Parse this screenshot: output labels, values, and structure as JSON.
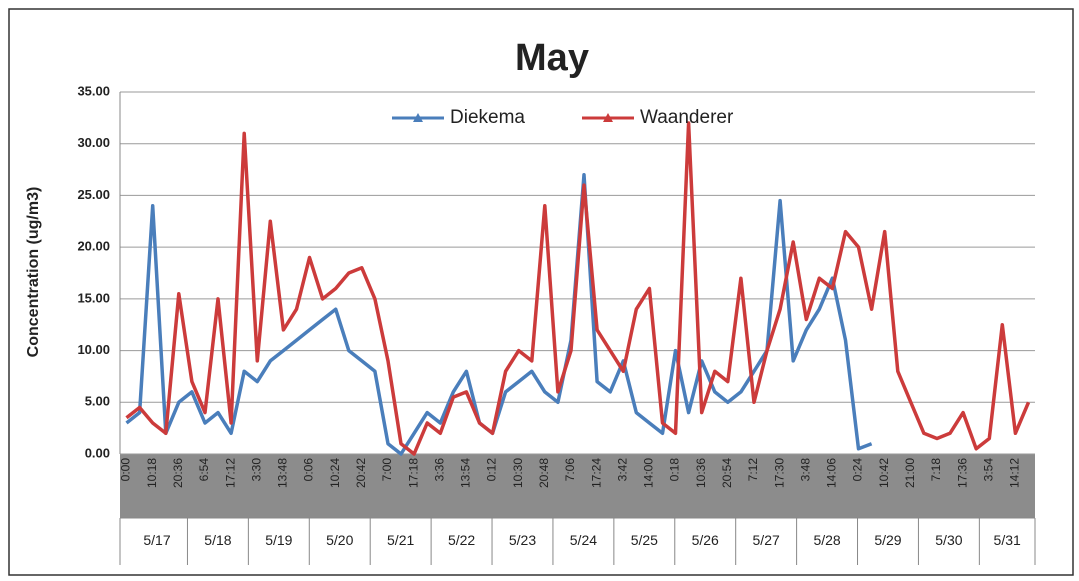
{
  "chart_data": {
    "type": "line",
    "title": "May",
    "y_label": "Concentration (ug/m3)",
    "categories": [
      "0:00",
      null,
      "10:18",
      null,
      "20:36",
      null,
      "6:54",
      null,
      "17:12",
      null,
      "3:30",
      null,
      "13:48",
      null,
      "0:06",
      null,
      "10:24",
      null,
      "20:42",
      null,
      "7:00",
      null,
      "17:18",
      null,
      "3:36",
      null,
      "13:54",
      null,
      "0:12",
      null,
      "10:30",
      null,
      "20:48",
      null,
      "7:06",
      null,
      "17:24",
      null,
      "3:42",
      null,
      "14:00",
      null,
      "0:18",
      null,
      "10:36",
      null,
      "20:54",
      null,
      "7:12",
      null,
      "17:30",
      null,
      "3:48",
      null,
      "14:06",
      null,
      "0:24",
      null,
      "10:42",
      null,
      "21:00",
      null,
      "7:18",
      null,
      "17:36",
      null,
      "3:54",
      null,
      "14:12",
      null
    ],
    "groups": [
      "5/17",
      "5/18",
      "5/19",
      "5/20",
      "5/21",
      "5/22",
      "5/23",
      "5/24",
      "5/25",
      "5/26",
      "5/27",
      "5/28",
      "5/29",
      "5/30",
      "5/31"
    ],
    "series": [
      {
        "name": "Diekema",
        "color": "#4a7ebb",
        "values": [
          3,
          4,
          24,
          2,
          5,
          6,
          3,
          4,
          2,
          8,
          7,
          9,
          10,
          11,
          12,
          13,
          14,
          10,
          9,
          8,
          1,
          0,
          2,
          4,
          3,
          6,
          8,
          3,
          2,
          6,
          7,
          8,
          6,
          5,
          11,
          27,
          7,
          6,
          9,
          4,
          3,
          2,
          10,
          4,
          9,
          6,
          5,
          6,
          8,
          10,
          24.5,
          9,
          12,
          14,
          17,
          11,
          0.5,
          1,
          null,
          null,
          null,
          null,
          null,
          null,
          null,
          null,
          null,
          null,
          null,
          null
        ]
      },
      {
        "name": "Waanderer",
        "color": "#cc3b3b",
        "values": [
          3.5,
          4.5,
          3,
          2,
          15.5,
          7,
          4,
          15,
          3,
          31,
          9,
          22.5,
          12,
          14,
          19,
          15,
          16,
          17.5,
          18,
          15,
          9,
          1,
          0,
          3,
          2,
          5.5,
          6,
          3,
          2,
          8,
          10,
          9,
          24,
          6,
          10,
          26,
          12,
          10,
          8,
          14,
          16,
          3,
          2,
          32,
          4,
          8,
          7,
          17,
          5,
          10,
          14,
          20.5,
          13,
          17,
          16,
          21.5,
          20,
          14,
          21.5,
          8,
          5,
          2,
          1.5,
          2,
          4,
          0.5,
          1.5,
          12.5,
          2,
          5
        ]
      }
    ],
    "ylim": [
      0,
      35
    ],
    "yticks": [
      {
        "value": 0,
        "label": "0.00"
      },
      {
        "value": 5,
        "label": "5.00"
      },
      {
        "value": 10,
        "label": "10.00"
      },
      {
        "value": 15,
        "label": "15.00"
      },
      {
        "value": 20,
        "label": "20.00"
      },
      {
        "value": 25,
        "label": "25.00"
      },
      {
        "value": 30,
        "label": "30.00"
      },
      {
        "value": 35,
        "label": "35.00"
      }
    ],
    "grid": true
  }
}
